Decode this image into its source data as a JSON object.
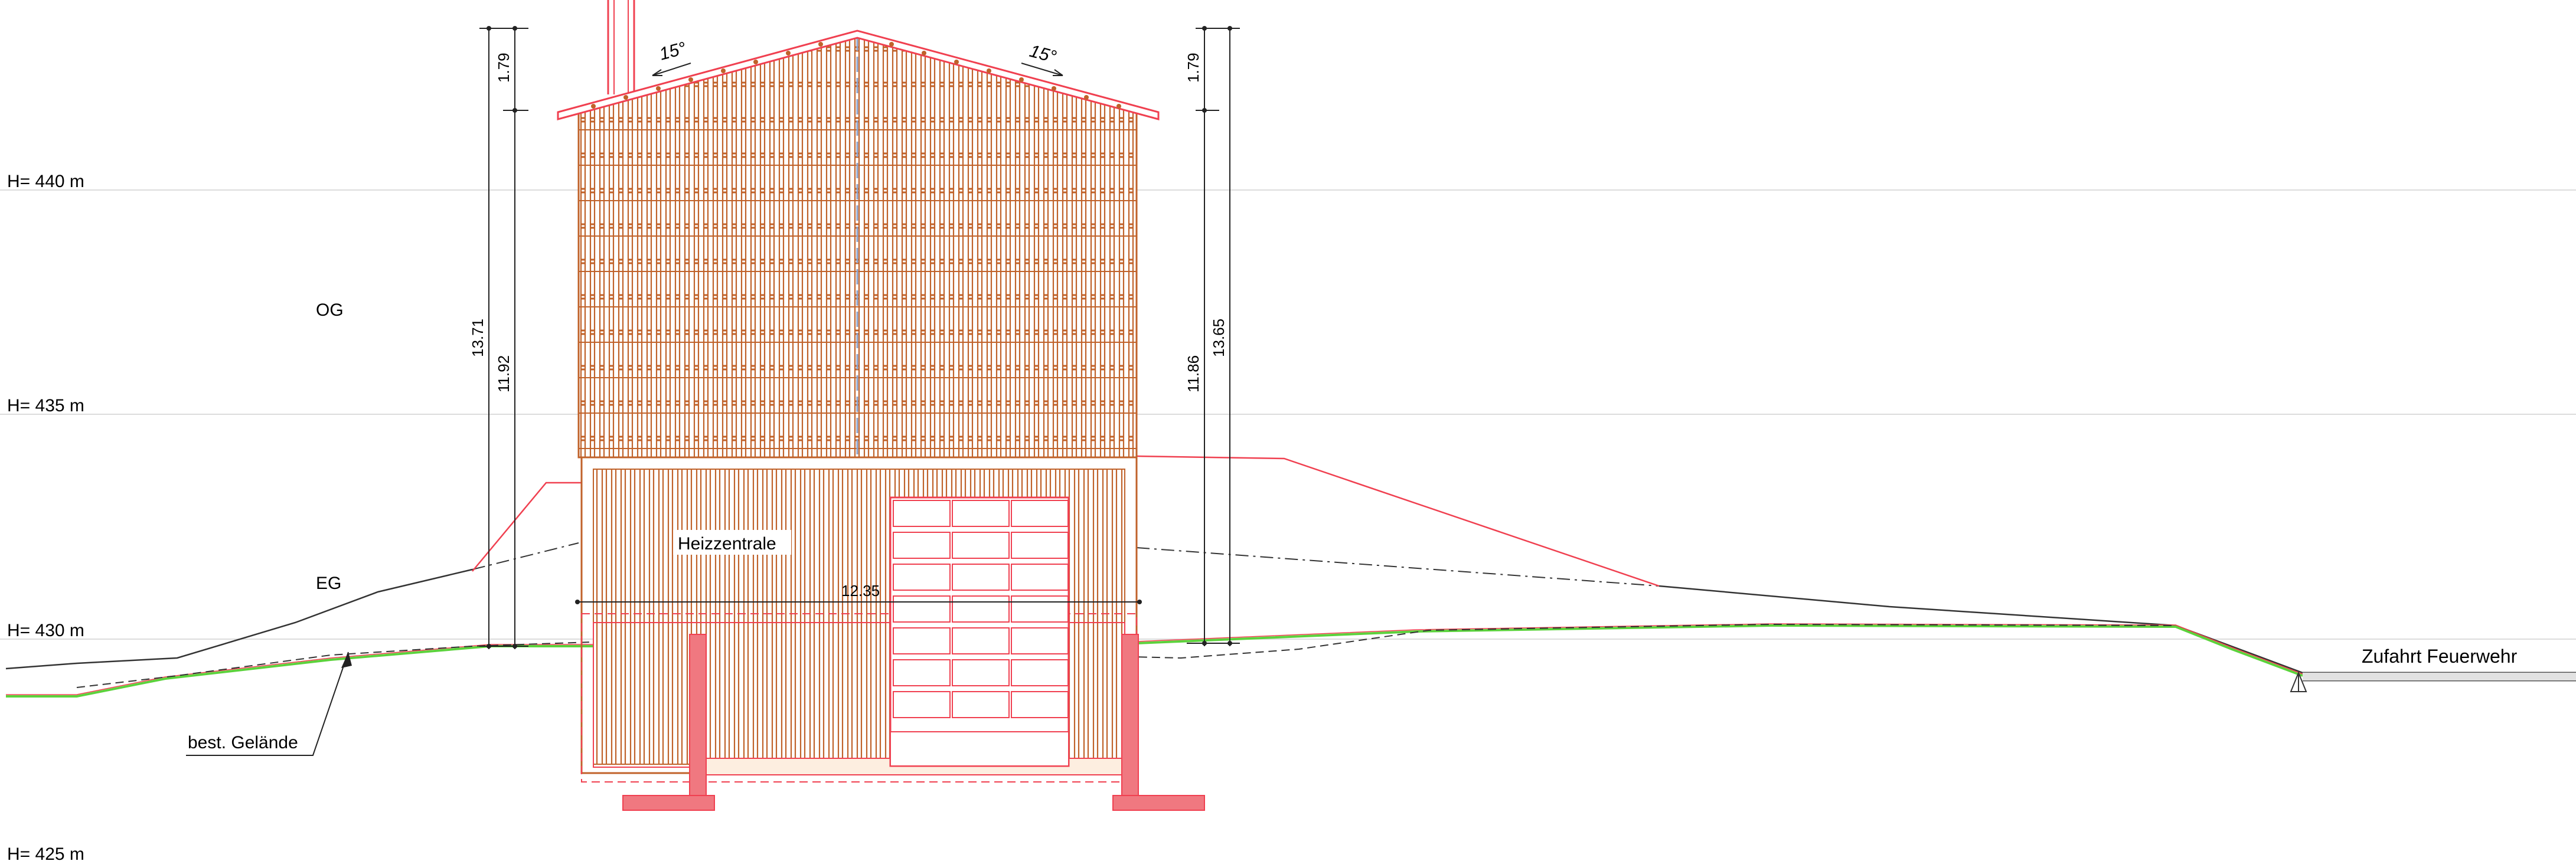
{
  "levels": [
    {
      "label": "H= 440 m",
      "elevation": 440
    },
    {
      "label": "H= 435 m",
      "elevation": 435
    },
    {
      "label": "H= 430 m",
      "elevation": 430
    },
    {
      "label": "H= 425 m",
      "elevation": 425
    }
  ],
  "floors": {
    "upper": "OG",
    "ground": "EG"
  },
  "room_label": "Heizzentrale",
  "width_dimension": "12.35",
  "dimensions": {
    "left_top": "1.79",
    "left_outer": "13.71",
    "left_inner": "11.92",
    "right_top": "1.79",
    "right_inner": "11.86",
    "right_outer": "13.65"
  },
  "roof_angles": {
    "left": "15°",
    "right": "15°"
  },
  "terrain_label": "best. Gelände",
  "access_label": "Zufahrt Feuerwehr",
  "colors": {
    "timber": "#c0622a",
    "red": "#f04050",
    "concrete": "#f07880",
    "terrain_green": "#5bd23c",
    "level_line": "#dcdcdc",
    "ink": "#222222",
    "ridge_axis": "#8aa0c8"
  }
}
